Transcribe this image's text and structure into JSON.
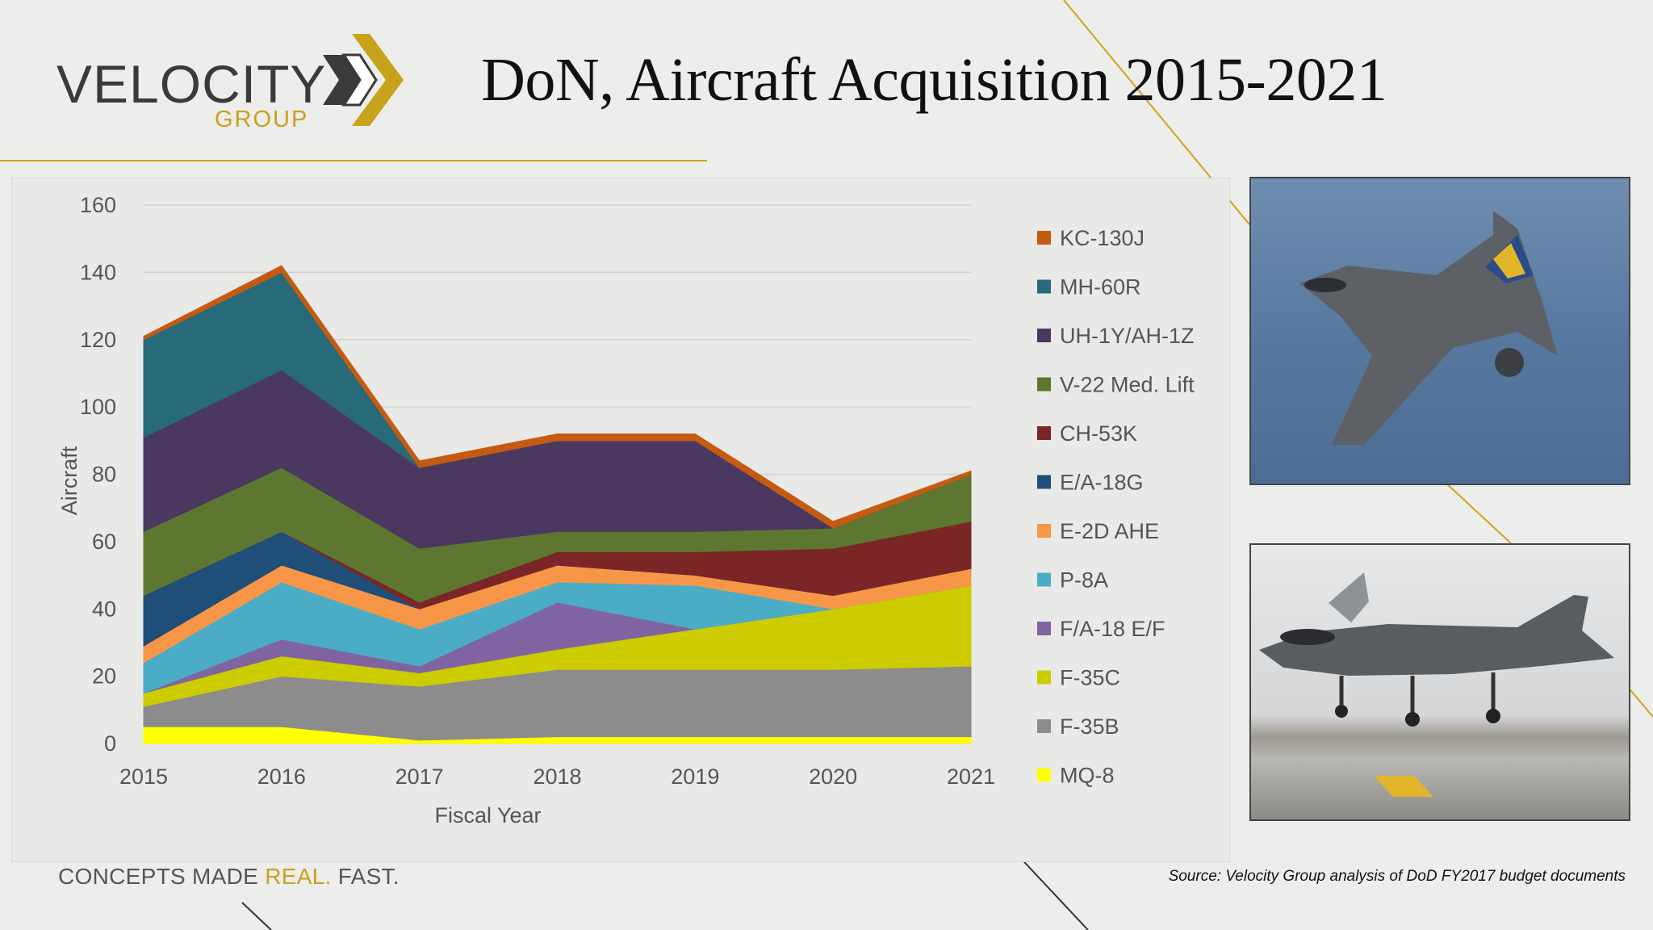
{
  "header": {
    "logo_word": "VELOCITY",
    "logo_group": "GROUP",
    "title": "DoN, Aircraft Acquisition  2015-2021"
  },
  "footer": {
    "tagline_prefix": "CONCEPTS MADE ",
    "tagline_accent": "REAL.",
    "tagline_suffix": " FAST.",
    "source": "Source: Velocity Group analysis of DoD FY2017 budget documents"
  },
  "colors": {
    "brand_gold": "#c7a21a",
    "logo_gray": "#3a3a3a"
  },
  "images": [
    {
      "name": "F-35C in flight (Navy)",
      "icon": "jet-photo-icon"
    },
    {
      "name": "F-35B vertical landing",
      "icon": "jet-photo-icon"
    }
  ],
  "chart_data": {
    "type": "area",
    "stacked": true,
    "title": "",
    "xlabel": "Fiscal Year",
    "ylabel": "Aircraft",
    "x": [
      "2015",
      "2016",
      "2017",
      "2018",
      "2019",
      "2020",
      "2021"
    ],
    "ylim": [
      0,
      160
    ],
    "yticks": [
      0,
      20,
      40,
      60,
      80,
      100,
      120,
      140,
      160
    ],
    "grid": true,
    "legend": "right",
    "series": [
      {
        "name": "MQ-8",
        "color": "#ffff00",
        "values": [
          5,
          5,
          1,
          2,
          2,
          2,
          2
        ]
      },
      {
        "name": "F-35B",
        "color": "#8c8c8c",
        "values": [
          6,
          15,
          16,
          20,
          20,
          20,
          21
        ]
      },
      {
        "name": "F-35C",
        "color": "#cccc00",
        "values": [
          4,
          6,
          4,
          6,
          12,
          18,
          24
        ]
      },
      {
        "name": "F/A-18 E/F",
        "color": "#8064a2",
        "values": [
          0,
          5,
          2,
          14,
          0,
          0,
          0
        ]
      },
      {
        "name": "P-8A",
        "color": "#4bacc6",
        "values": [
          9,
          17,
          11,
          6,
          13,
          0,
          0
        ]
      },
      {
        "name": "E-2D AHE",
        "color": "#f79646",
        "values": [
          5,
          5,
          6,
          5,
          3,
          4,
          5
        ]
      },
      {
        "name": "E/A-18G",
        "color": "#1f4e79",
        "values": [
          15,
          10,
          0,
          0,
          0,
          0,
          0
        ]
      },
      {
        "name": "CH-53K",
        "color": "#7b2626",
        "values": [
          0,
          0,
          2,
          4,
          7,
          14,
          14
        ]
      },
      {
        "name": "V-22 Med. Lift",
        "color": "#5d7730",
        "values": [
          19,
          19,
          16,
          6,
          6,
          6,
          14
        ]
      },
      {
        "name": "UH-1Y/AH-1Z",
        "color": "#4a3861",
        "values": [
          28,
          29,
          24,
          27,
          27,
          0,
          0
        ]
      },
      {
        "name": "MH-60R",
        "color": "#276a7a",
        "values": [
          29,
          29,
          0,
          0,
          0,
          0,
          0
        ]
      },
      {
        "name": "KC-130J",
        "color": "#c55a11",
        "values": [
          1,
          2,
          2,
          2,
          2,
          2,
          1
        ]
      }
    ]
  }
}
